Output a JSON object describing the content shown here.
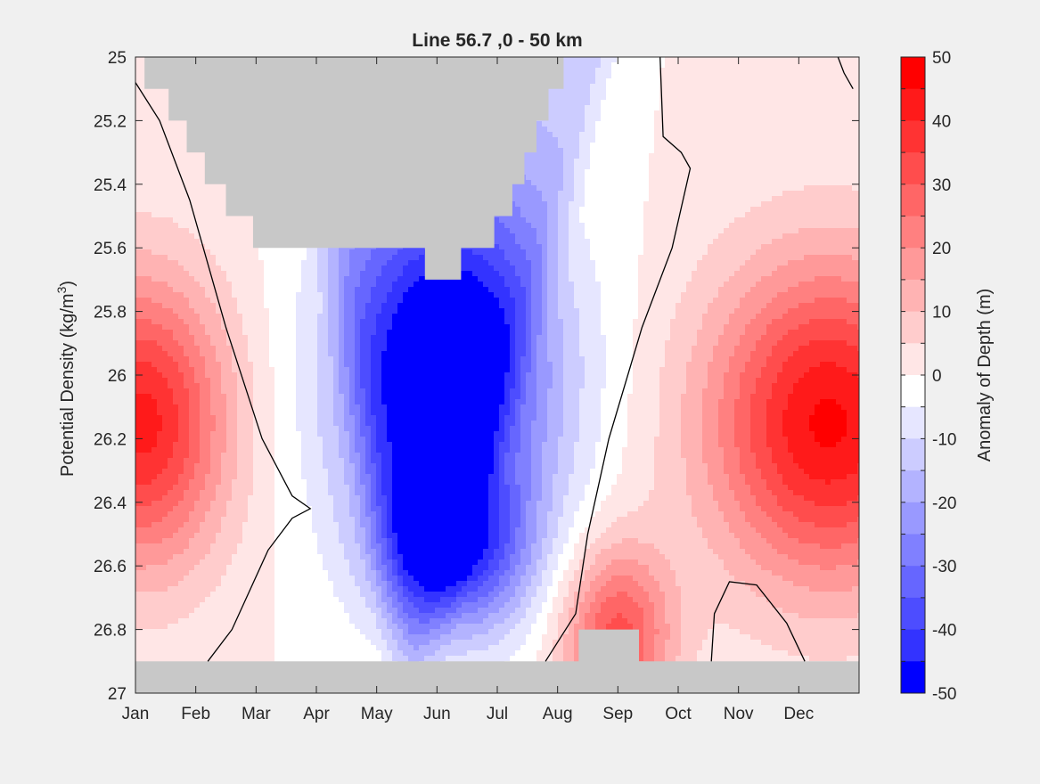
{
  "chart_data": {
    "type": "heatmap",
    "subtype": "filled-contour",
    "title": "Line 56.7 ,0 - 50 km",
    "xlabel": "",
    "ylabel_main": "Potential Density (kg/m",
    "ylabel_sup": "3",
    "ylabel_close": ")",
    "x_tick_labels": [
      "Jan",
      "Feb",
      "Mar",
      "Apr",
      "May",
      "Jun",
      "Jul",
      "Aug",
      "Sep",
      "Oct",
      "Nov",
      "Dec"
    ],
    "x_months_range": [
      0,
      12
    ],
    "y_tick_labels": [
      "25",
      "25.2",
      "25.4",
      "25.6",
      "25.8",
      "26",
      "26.2",
      "26.4",
      "26.6",
      "26.8",
      "27"
    ],
    "ylim": [
      25,
      27
    ],
    "y_direction": "reversed",
    "colorbar": {
      "label": "Anomaly of Depth (m)",
      "tick_labels": [
        "50",
        "40",
        "30",
        "20",
        "10",
        "0",
        "-10",
        "-20",
        "-30",
        "-40",
        "-50"
      ],
      "range": [
        -50,
        50
      ],
      "step": 5,
      "levels": [
        {
          "min": 45,
          "max": 50,
          "color": "#ff0000"
        },
        {
          "min": 40,
          "max": 45,
          "color": "#ff1a1a"
        },
        {
          "min": 35,
          "max": 40,
          "color": "#ff3333"
        },
        {
          "min": 30,
          "max": 35,
          "color": "#ff4d4d"
        },
        {
          "min": 25,
          "max": 30,
          "color": "#ff6666"
        },
        {
          "min": 20,
          "max": 25,
          "color": "#ff8080"
        },
        {
          "min": 15,
          "max": 20,
          "color": "#ff9999"
        },
        {
          "min": 10,
          "max": 15,
          "color": "#ffb3b3"
        },
        {
          "min": 5,
          "max": 10,
          "color": "#ffcccc"
        },
        {
          "min": 0,
          "max": 5,
          "color": "#ffe6e6"
        },
        {
          "min": -5,
          "max": 0,
          "color": "#ffffff"
        },
        {
          "min": -10,
          "max": -5,
          "color": "#e6e6ff"
        },
        {
          "min": -15,
          "max": -10,
          "color": "#ccccff"
        },
        {
          "min": -20,
          "max": -15,
          "color": "#b3b3ff"
        },
        {
          "min": -25,
          "max": -20,
          "color": "#9999ff"
        },
        {
          "min": -30,
          "max": -25,
          "color": "#8080ff"
        },
        {
          "min": -35,
          "max": -30,
          "color": "#6666ff"
        },
        {
          "min": -40,
          "max": -35,
          "color": "#4d4dff"
        },
        {
          "min": -45,
          "max": -40,
          "color": "#3333ff"
        },
        {
          "min": -50,
          "max": -45,
          "color": "#0000ff"
        }
      ]
    },
    "features": [
      {
        "name": "winter positive anomaly",
        "month": 0.1,
        "density": 26.15,
        "peak": 42,
        "spread_month": 1.4,
        "spread_density": 0.45
      },
      {
        "name": "late-year positive anomaly",
        "month": 11.5,
        "density": 26.15,
        "peak": 46,
        "spread_month": 2.0,
        "spread_density": 0.5
      },
      {
        "name": "late-summer deep positive anomaly",
        "month": 8.0,
        "density": 26.82,
        "peak": 32,
        "spread_month": 0.9,
        "spread_density": 0.28
      },
      {
        "name": "early-summer negative anomaly",
        "month": 5.2,
        "density": 26.0,
        "peak": -48,
        "spread_month": 1.8,
        "spread_density": 0.55
      },
      {
        "name": "deep negative anomaly",
        "month": 5.3,
        "density": 26.55,
        "peak": -35,
        "spread_month": 1.2,
        "spread_density": 0.25
      }
    ],
    "missing_color": "#c8c8c8",
    "zero_contour_color": "#000000"
  }
}
